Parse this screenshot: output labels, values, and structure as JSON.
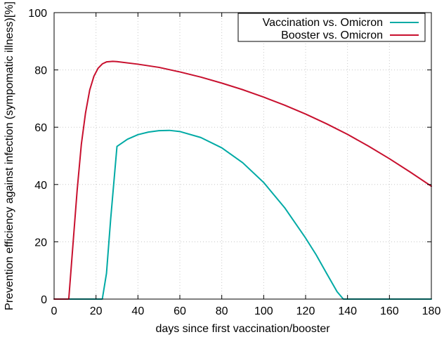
{
  "chart_data": {
    "type": "line",
    "title": "",
    "xlabel": "days since first vaccination/booster",
    "ylabel": "Prevention efficiency against infection (sympomatic illness)[%]",
    "xlim": [
      0,
      180
    ],
    "ylim": [
      0,
      100
    ],
    "xticks": [
      0,
      20,
      40,
      60,
      80,
      100,
      120,
      140,
      160,
      180
    ],
    "yticks": [
      0,
      20,
      40,
      60,
      80,
      100
    ],
    "grid": true,
    "legend": "top-right",
    "series": [
      {
        "name": "Vaccination vs. Omicron",
        "color": "#00aaa5",
        "x": [
          0,
          23,
          25,
          27,
          30,
          35,
          40,
          45,
          50,
          55,
          60,
          70,
          80,
          90,
          100,
          110,
          120,
          125,
          130,
          135,
          138,
          141,
          150,
          180
        ],
        "y": [
          0,
          0,
          9,
          28,
          53.3,
          55.8,
          57.4,
          58.3,
          58.8,
          58.9,
          58.5,
          56.4,
          52.8,
          47.6,
          40.7,
          31.9,
          21.3,
          15.5,
          9.0,
          2.6,
          0,
          0,
          0,
          0
        ]
      },
      {
        "name": "Booster vs. Omicron",
        "color": "#c8102e",
        "x": [
          0,
          7,
          9,
          11,
          13,
          15,
          17,
          19,
          21,
          23,
          25,
          28,
          30,
          40,
          50,
          60,
          70,
          80,
          90,
          100,
          110,
          120,
          130,
          140,
          150,
          160,
          170,
          180
        ],
        "y": [
          0,
          0,
          19,
          38,
          54,
          65,
          73,
          77.8,
          80.6,
          82.1,
          82.8,
          83.0,
          82.9,
          82.0,
          80.9,
          79.3,
          77.5,
          75.4,
          73.1,
          70.5,
          67.7,
          64.6,
          61.2,
          57.5,
          53.4,
          49.0,
          44.3,
          39.4
        ]
      }
    ]
  }
}
